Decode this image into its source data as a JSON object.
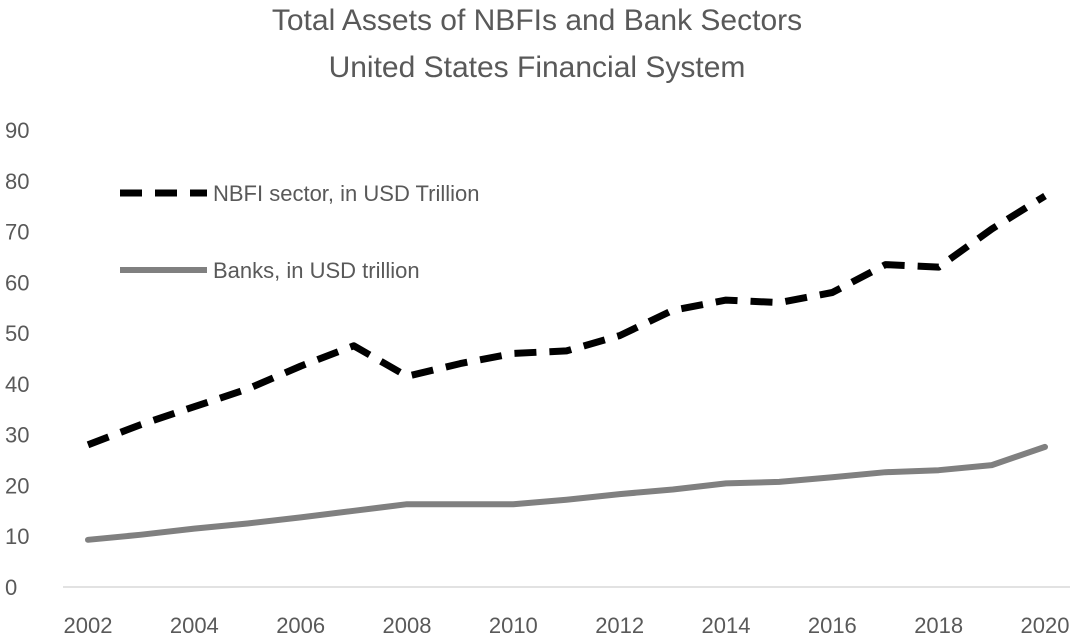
{
  "chart_data": {
    "type": "line",
    "title": "Total Assets of NBFIs and Bank Sectors",
    "subtitle": "United States Financial System",
    "xlabel": "",
    "ylabel": "",
    "ylim": [
      0,
      90
    ],
    "yticks": [
      0,
      10,
      20,
      30,
      40,
      50,
      60,
      70,
      80,
      90
    ],
    "xticks": [
      2002,
      2004,
      2006,
      2008,
      2010,
      2012,
      2014,
      2016,
      2018,
      2020
    ],
    "x": [
      2002,
      2003,
      2004,
      2005,
      2006,
      2007,
      2008,
      2009,
      2010,
      2011,
      2012,
      2013,
      2014,
      2015,
      2016,
      2017,
      2018,
      2019,
      2020
    ],
    "grid": false,
    "legend_position": "top-left",
    "series": [
      {
        "name": "NBFI sector, in USD Trillion",
        "color": "#000000",
        "style": "dashed",
        "values": [
          28,
          32,
          35.5,
          39,
          43.5,
          47.5,
          41.5,
          44,
          46,
          46.5,
          49.5,
          54.5,
          56.5,
          56,
          58,
          63.5,
          63,
          70.5,
          77
        ]
      },
      {
        "name": "Banks, in USD trillion",
        "color": "#808080",
        "style": "solid",
        "values": [
          9.3,
          10.3,
          11.5,
          12.5,
          13.7,
          15,
          16.3,
          16.3,
          16.3,
          17.2,
          18.3,
          19.2,
          20.4,
          20.7,
          21.6,
          22.6,
          23,
          24,
          27.6
        ]
      }
    ]
  }
}
